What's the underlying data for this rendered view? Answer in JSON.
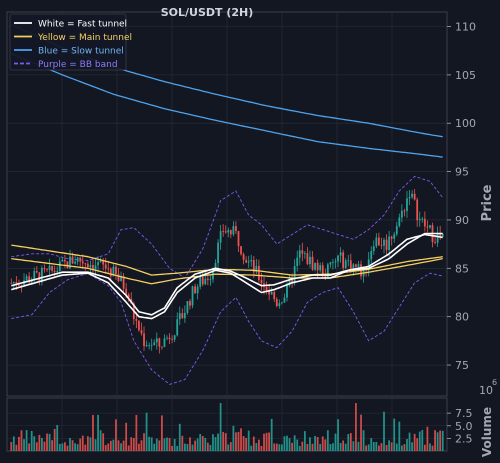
{
  "chart_data": {
    "type": "line",
    "title": "SOL/USDT (2H)",
    "ylabel": "Price",
    "ylim": [
      71.8,
      111.5
    ],
    "yticks": [
      75,
      80,
      85,
      90,
      95,
      100,
      105,
      110
    ],
    "volume_label": "Volume",
    "volume_exponent": "6",
    "volume_multiplier_prefix": "10",
    "volume_ylim": [
      0,
      10.5
    ],
    "volume_ticks": [
      "2.5",
      "5.0",
      "7.5"
    ],
    "volume_tick_values": [
      2.5,
      5.0,
      7.5
    ],
    "legend": {
      "placement": "top-left",
      "entries": [
        {
          "label": "White = Fast tunnel",
          "color": "#ffffff",
          "style": "solid"
        },
        {
          "label": "Yellow = Main tunnel",
          "color": "#f5d061",
          "style": "solid"
        },
        {
          "label": "Blue = Slow tunnel",
          "color": "#4ea3ee",
          "style": "solid"
        },
        {
          "label": "Purple = BB band",
          "color": "#7b5cf0",
          "style": "dashed"
        }
      ]
    },
    "colors": {
      "up": "#26a69a",
      "down": "#ef5350",
      "background": "#131722",
      "grid": "#2a2f3d",
      "text": "#d1d4dc"
    },
    "n_bars": 170,
    "close_keypoints": [
      [
        0,
        83.5
      ],
      [
        15,
        84.5
      ],
      [
        25,
        86.0
      ],
      [
        38,
        85.0
      ],
      [
        45,
        83.0
      ],
      [
        48,
        80.0
      ],
      [
        52,
        77.5
      ],
      [
        58,
        77.0
      ],
      [
        65,
        79.0
      ],
      [
        72,
        83.0
      ],
      [
        78,
        84.5
      ],
      [
        83,
        89.0
      ],
      [
        88,
        88.5
      ],
      [
        92,
        86.0
      ],
      [
        96,
        84.5
      ],
      [
        100,
        83.0
      ],
      [
        104,
        81.5
      ],
      [
        108,
        82.5
      ],
      [
        113,
        86.5
      ],
      [
        118,
        85.5
      ],
      [
        123,
        84.5
      ],
      [
        128,
        86.0
      ],
      [
        133,
        85.5
      ],
      [
        138,
        84.5
      ],
      [
        142,
        88.0
      ],
      [
        147,
        87.5
      ],
      [
        152,
        90.0
      ],
      [
        156,
        93.0
      ],
      [
        160,
        90.0
      ],
      [
        165,
        88.5
      ],
      [
        169,
        88.0
      ]
    ],
    "series": [
      {
        "name": "White = Fast tunnel",
        "color": "#ffffff",
        "points": [
          [
            0,
            82.8
          ],
          [
            20,
            84.3
          ],
          [
            30,
            84.5
          ],
          [
            38,
            83.5
          ],
          [
            45,
            81.5
          ],
          [
            50,
            80.0
          ],
          [
            55,
            79.8
          ],
          [
            60,
            80.5
          ],
          [
            65,
            82.5
          ],
          [
            72,
            84.0
          ],
          [
            80,
            84.8
          ],
          [
            86,
            84.5
          ],
          [
            92,
            83.5
          ],
          [
            98,
            82.5
          ],
          [
            103,
            82.8
          ],
          [
            110,
            83.5
          ],
          [
            118,
            84.0
          ],
          [
            125,
            84.0
          ],
          [
            132,
            84.8
          ],
          [
            140,
            85.2
          ],
          [
            148,
            86.5
          ],
          [
            155,
            88.0
          ],
          [
            162,
            88.5
          ],
          [
            169,
            88.2
          ]
        ]
      },
      {
        "name": "White = Fast tunnel",
        "color": "#ffffff",
        "points": [
          [
            0,
            83.2
          ],
          [
            20,
            84.6
          ],
          [
            30,
            84.6
          ],
          [
            38,
            84.0
          ],
          [
            45,
            82.2
          ],
          [
            50,
            80.5
          ],
          [
            55,
            80.2
          ],
          [
            60,
            80.9
          ],
          [
            65,
            83.0
          ],
          [
            72,
            84.4
          ],
          [
            80,
            85.0
          ],
          [
            86,
            84.7
          ],
          [
            92,
            84.0
          ],
          [
            98,
            83.2
          ],
          [
            103,
            83.3
          ],
          [
            110,
            83.9
          ],
          [
            118,
            84.3
          ],
          [
            125,
            84.3
          ],
          [
            132,
            84.8
          ],
          [
            140,
            85.0
          ],
          [
            148,
            86.0
          ],
          [
            155,
            87.5
          ],
          [
            162,
            88.6
          ],
          [
            169,
            88.6
          ]
        ]
      },
      {
        "name": "Yellow = Main tunnel",
        "color": "#f5d061",
        "points": [
          [
            0,
            87.4
          ],
          [
            15,
            86.8
          ],
          [
            30,
            86.2
          ],
          [
            45,
            85.2
          ],
          [
            55,
            84.3
          ],
          [
            65,
            84.5
          ],
          [
            80,
            84.9
          ],
          [
            95,
            84.8
          ],
          [
            110,
            84.3
          ],
          [
            125,
            84.4
          ],
          [
            140,
            84.9
          ],
          [
            155,
            85.7
          ],
          [
            169,
            86.2
          ]
        ]
      },
      {
        "name": "Yellow = Main tunnel",
        "color": "#f5d061",
        "points": [
          [
            0,
            86.0
          ],
          [
            15,
            85.5
          ],
          [
            30,
            85.0
          ],
          [
            45,
            84.0
          ],
          [
            55,
            83.4
          ],
          [
            65,
            83.9
          ],
          [
            80,
            84.4
          ],
          [
            95,
            84.3
          ],
          [
            110,
            84.0
          ],
          [
            125,
            84.0
          ],
          [
            140,
            84.6
          ],
          [
            155,
            85.3
          ],
          [
            169,
            86.0
          ]
        ]
      },
      {
        "name": "Blue = Slow tunnel",
        "color": "#4ea3ee",
        "points": [
          [
            0,
            110.2
          ],
          [
            20,
            107.8
          ],
          [
            40,
            105.8
          ],
          [
            60,
            104.3
          ],
          [
            80,
            103.0
          ],
          [
            100,
            101.8
          ],
          [
            120,
            100.8
          ],
          [
            140,
            100.0
          ],
          [
            160,
            99.0
          ],
          [
            169,
            98.6
          ]
        ]
      },
      {
        "name": "Blue = Slow tunnel",
        "color": "#4ea3ee",
        "points": [
          [
            0,
            107.2
          ],
          [
            20,
            105.0
          ],
          [
            40,
            103.0
          ],
          [
            60,
            101.5
          ],
          [
            80,
            100.3
          ],
          [
            100,
            99.2
          ],
          [
            120,
            98.1
          ],
          [
            140,
            97.4
          ],
          [
            160,
            96.8
          ],
          [
            169,
            96.5
          ]
        ]
      },
      {
        "name": "Purple = BB band",
        "color": "#7b5cf0",
        "dashed": true,
        "points": [
          [
            0,
            79.8
          ],
          [
            8,
            80.2
          ],
          [
            15,
            82.5
          ],
          [
            22,
            83.8
          ],
          [
            30,
            84.5
          ],
          [
            38,
            83.2
          ],
          [
            43,
            81.5
          ],
          [
            48,
            77.5
          ],
          [
            55,
            74.5
          ],
          [
            62,
            73.0
          ],
          [
            68,
            73.5
          ],
          [
            75,
            76.5
          ],
          [
            82,
            80.5
          ],
          [
            88,
            82.0
          ],
          [
            93,
            79.5
          ],
          [
            98,
            77.5
          ],
          [
            104,
            76.8
          ],
          [
            110,
            78.5
          ],
          [
            116,
            81.5
          ],
          [
            122,
            82.5
          ],
          [
            128,
            83.0
          ],
          [
            134,
            80.5
          ],
          [
            140,
            77.5
          ],
          [
            146,
            78.5
          ],
          [
            152,
            81.0
          ],
          [
            158,
            83.5
          ],
          [
            164,
            84.5
          ],
          [
            169,
            84.2
          ]
        ]
      },
      {
        "name": "Purple = BB band",
        "color": "#7b5cf0",
        "dashed": true,
        "points": [
          [
            0,
            86.2
          ],
          [
            8,
            86.5
          ],
          [
            15,
            86.5
          ],
          [
            22,
            86.0
          ],
          [
            30,
            85.8
          ],
          [
            38,
            86.5
          ],
          [
            43,
            89.0
          ],
          [
            48,
            89.2
          ],
          [
            55,
            87.5
          ],
          [
            62,
            85.0
          ],
          [
            68,
            84.0
          ],
          [
            75,
            87.0
          ],
          [
            82,
            92.0
          ],
          [
            88,
            93.0
          ],
          [
            93,
            90.5
          ],
          [
            98,
            89.5
          ],
          [
            104,
            87.5
          ],
          [
            110,
            88.5
          ],
          [
            116,
            89.5
          ],
          [
            122,
            89.0
          ],
          [
            128,
            88.5
          ],
          [
            134,
            88.0
          ],
          [
            140,
            89.0
          ],
          [
            146,
            90.5
          ],
          [
            152,
            93.0
          ],
          [
            158,
            94.5
          ],
          [
            164,
            94.0
          ],
          [
            169,
            92.3
          ]
        ]
      }
    ]
  }
}
